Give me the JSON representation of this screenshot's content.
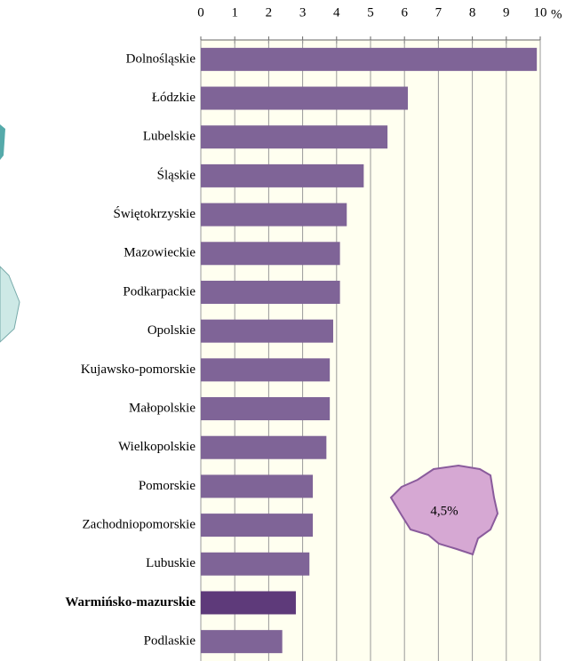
{
  "chart_data": {
    "type": "bar",
    "orientation": "horizontal",
    "categories": [
      "Dolnośląskie",
      "Łódzkie",
      "Lubelskie",
      "Śląskie",
      "Świętokrzyskie",
      "Mazowieckie",
      "Podkarpackie",
      "Opolskie",
      "Kujawsko-pomorskie",
      "Małopolskie",
      "Wielkopolskie",
      "Pomorskie",
      "Zachodniopomorskie",
      "Lubuskie",
      "Warmińsko-mazurskie",
      "Podlaskie"
    ],
    "values": [
      9.9,
      6.1,
      5.5,
      4.8,
      4.3,
      4.1,
      4.1,
      3.9,
      3.8,
      3.8,
      3.7,
      3.3,
      3.3,
      3.2,
      2.8,
      2.4
    ],
    "color": "#7f6497",
    "highlight": {
      "index": 14,
      "color": "#5e3a7a"
    },
    "xlim": [
      0,
      10
    ],
    "xticks": [
      0,
      1,
      2,
      3,
      4,
      5,
      6,
      7,
      8,
      9,
      10
    ],
    "x_unit": "%",
    "grid": true,
    "annotation": "4,5%"
  }
}
